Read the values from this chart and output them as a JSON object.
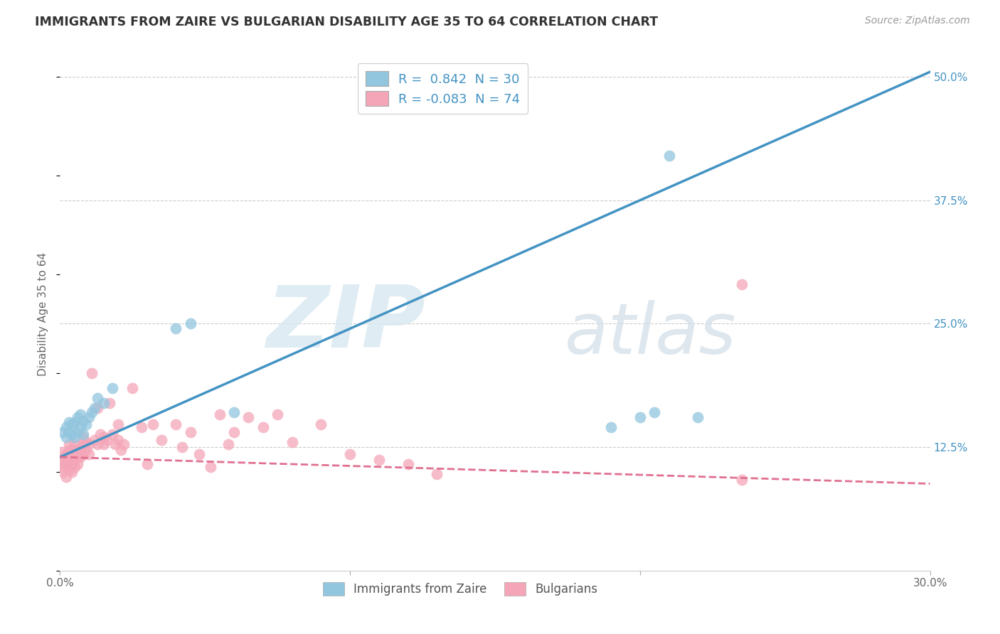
{
  "title": "IMMIGRANTS FROM ZAIRE VS BULGARIAN DISABILITY AGE 35 TO 64 CORRELATION CHART",
  "source": "Source: ZipAtlas.com",
  "ylabel": "Disability Age 35 to 64",
  "xlabel_label_blue": "Immigrants from Zaire",
  "xlabel_label_pink": "Bulgarians",
  "xlim": [
    0.0,
    0.3
  ],
  "ylim": [
    0.0,
    0.52
  ],
  "y_ticks_right": [
    0.125,
    0.25,
    0.375,
    0.5
  ],
  "y_tick_labels_right": [
    "12.5%",
    "25.0%",
    "37.5%",
    "50.0%"
  ],
  "legend_blue_R": "0.842",
  "legend_blue_N": "30",
  "legend_pink_R": "-0.083",
  "legend_pink_N": "74",
  "blue_color": "#92c5de",
  "pink_color": "#f4a6b8",
  "blue_line_color": "#4393c3",
  "pink_line_color": "#e07090",
  "watermark_zip": "ZIP",
  "watermark_atlas": "atlas",
  "blue_scatter_x": [
    0.001,
    0.002,
    0.002,
    0.003,
    0.003,
    0.004,
    0.004,
    0.005,
    0.005,
    0.006,
    0.006,
    0.007,
    0.007,
    0.008,
    0.008,
    0.009,
    0.01,
    0.011,
    0.012,
    0.013,
    0.015,
    0.018,
    0.04,
    0.045,
    0.06,
    0.19,
    0.2,
    0.205,
    0.21,
    0.22
  ],
  "blue_scatter_y": [
    0.14,
    0.135,
    0.145,
    0.14,
    0.15,
    0.138,
    0.148,
    0.135,
    0.15,
    0.14,
    0.155,
    0.145,
    0.158,
    0.138,
    0.152,
    0.148,
    0.155,
    0.16,
    0.165,
    0.175,
    0.17,
    0.185,
    0.245,
    0.25,
    0.16,
    0.145,
    0.155,
    0.16,
    0.42,
    0.155
  ],
  "pink_scatter_x": [
    0.001,
    0.001,
    0.001,
    0.001,
    0.001,
    0.002,
    0.002,
    0.002,
    0.002,
    0.003,
    0.003,
    0.003,
    0.003,
    0.003,
    0.003,
    0.004,
    0.004,
    0.004,
    0.004,
    0.005,
    0.005,
    0.005,
    0.005,
    0.006,
    0.006,
    0.006,
    0.007,
    0.007,
    0.008,
    0.008,
    0.008,
    0.009,
    0.009,
    0.01,
    0.01,
    0.011,
    0.012,
    0.013,
    0.013,
    0.014,
    0.015,
    0.015,
    0.016,
    0.017,
    0.018,
    0.019,
    0.02,
    0.02,
    0.021,
    0.022,
    0.025,
    0.028,
    0.03,
    0.032,
    0.035,
    0.04,
    0.042,
    0.045,
    0.048,
    0.052,
    0.055,
    0.058,
    0.06,
    0.065,
    0.07,
    0.075,
    0.08,
    0.09,
    0.1,
    0.11,
    0.12,
    0.13,
    0.235,
    0.235
  ],
  "pink_scatter_y": [
    0.1,
    0.105,
    0.11,
    0.115,
    0.12,
    0.095,
    0.108,
    0.113,
    0.118,
    0.102,
    0.108,
    0.112,
    0.118,
    0.122,
    0.128,
    0.1,
    0.108,
    0.115,
    0.122,
    0.105,
    0.112,
    0.118,
    0.128,
    0.108,
    0.115,
    0.122,
    0.115,
    0.125,
    0.118,
    0.128,
    0.135,
    0.122,
    0.13,
    0.118,
    0.128,
    0.2,
    0.132,
    0.165,
    0.128,
    0.138,
    0.128,
    0.135,
    0.132,
    0.17,
    0.138,
    0.128,
    0.132,
    0.148,
    0.122,
    0.128,
    0.185,
    0.145,
    0.108,
    0.148,
    0.132,
    0.148,
    0.125,
    0.14,
    0.118,
    0.105,
    0.158,
    0.128,
    0.14,
    0.155,
    0.145,
    0.158,
    0.13,
    0.148,
    0.118,
    0.112,
    0.108,
    0.098,
    0.29,
    0.092
  ],
  "blue_line_y_at_0": 0.115,
  "blue_line_y_at_30": 0.505,
  "pink_line_y_at_0": 0.115,
  "pink_line_y_at_30": 0.088
}
